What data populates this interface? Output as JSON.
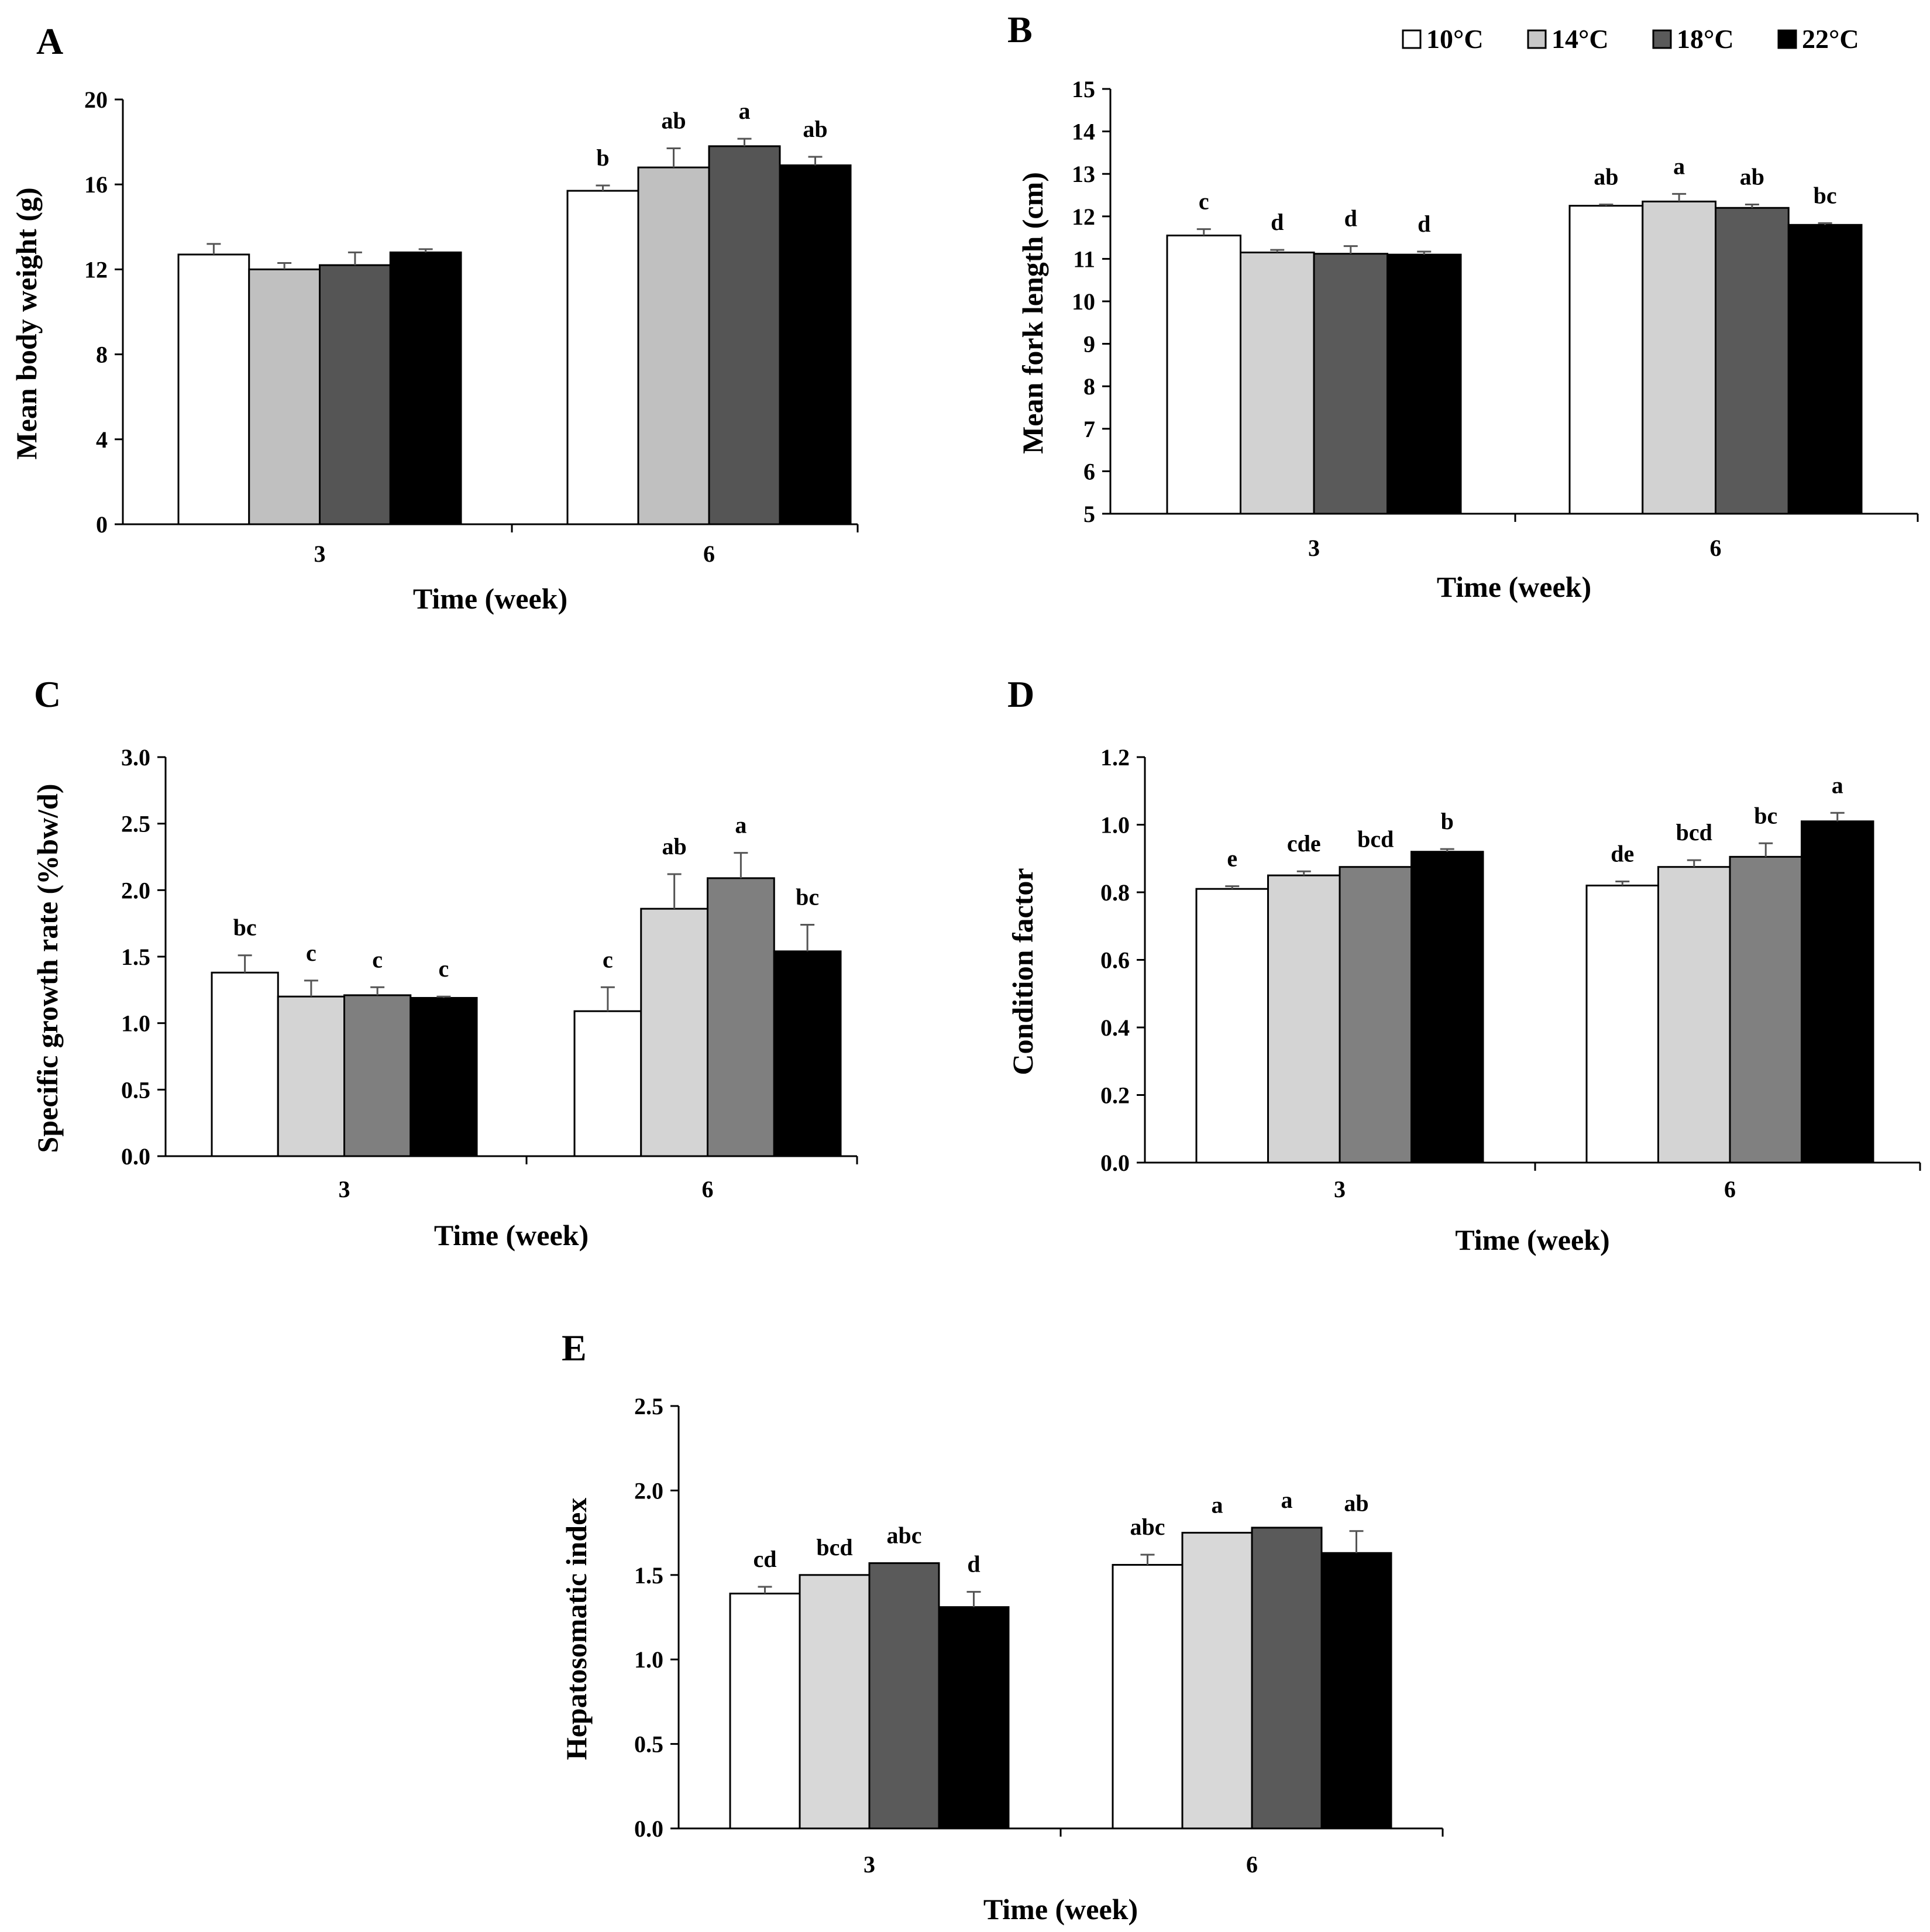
{
  "colors": {
    "10": "#ffffff",
    "14": "#c8c8c8",
    "18": "#5a5a5a",
    "22": "#000000"
  },
  "legend": [
    {
      "label": "10°C",
      "color": "#ffffff"
    },
    {
      "label": "14°C",
      "color": "#c8c8c8"
    },
    {
      "label": "18°C",
      "color": "#5a5a5a"
    },
    {
      "label": "22°C",
      "color": "#000000"
    }
  ],
  "chart_data": [
    {
      "panel": "A",
      "type": "bar",
      "categories": [
        "3",
        "6"
      ],
      "xlabel": "Time (week)",
      "ylabel": "Mean body weight (g)",
      "ylim": [
        0,
        20
      ],
      "yticks": [
        "0",
        "4",
        "8",
        "12",
        "16",
        "20"
      ],
      "colors": [
        "#ffffff",
        "#c0c0c0",
        "#555555",
        "#000000"
      ],
      "series": [
        {
          "name": "10°C",
          "values": [
            12.7,
            15.7
          ],
          "errors": [
            0.5,
            0.25
          ],
          "sig": [
            "",
            "b"
          ]
        },
        {
          "name": "14°C",
          "values": [
            12.0,
            16.8
          ],
          "errors": [
            0.3,
            0.9
          ],
          "sig": [
            "",
            "ab"
          ]
        },
        {
          "name": "18°C",
          "values": [
            12.2,
            17.8
          ],
          "errors": [
            0.6,
            0.35
          ],
          "sig": [
            "",
            "a"
          ]
        },
        {
          "name": "22°C",
          "values": [
            12.8,
            16.9
          ],
          "errors": [
            0.15,
            0.4
          ],
          "sig": [
            "",
            "ab"
          ]
        }
      ]
    },
    {
      "panel": "B",
      "type": "bar",
      "categories": [
        "3",
        "6"
      ],
      "xlabel": "Time (week)",
      "ylabel": "Mean fork length (cm)",
      "ylim": [
        5,
        15
      ],
      "yticks": [
        "5",
        "6",
        "7",
        "8",
        "9",
        "10",
        "11",
        "12",
        "13",
        "14",
        "15"
      ],
      "colors": [
        "#ffffff",
        "#d2d2d2",
        "#5a5a5a",
        "#000000"
      ],
      "series": [
        {
          "name": "10°C",
          "values": [
            11.55,
            12.25
          ],
          "errors": [
            0.15,
            0.03
          ],
          "sig": [
            "c",
            "ab"
          ]
        },
        {
          "name": "14°C",
          "values": [
            11.15,
            12.35
          ],
          "errors": [
            0.06,
            0.18
          ],
          "sig": [
            "d",
            "a"
          ]
        },
        {
          "name": "18°C",
          "values": [
            11.12,
            12.2
          ],
          "errors": [
            0.18,
            0.08
          ],
          "sig": [
            "d",
            "ab"
          ]
        },
        {
          "name": "22°C",
          "values": [
            11.1,
            11.8
          ],
          "errors": [
            0.07,
            0.04
          ],
          "sig": [
            "d",
            "bc"
          ]
        }
      ]
    },
    {
      "panel": "C",
      "type": "bar",
      "categories": [
        "3",
        "6"
      ],
      "xlabel": "Time (week)",
      "ylabel": "Specific growth rate (%bw/d)",
      "ylim": [
        0,
        3
      ],
      "yticks": [
        "0.0",
        "0.5",
        "1.0",
        "1.5",
        "2.0",
        "2.5",
        "3.0"
      ],
      "colors": [
        "#ffffff",
        "#d4d4d4",
        "#7f7f7f",
        "#000000"
      ],
      "series": [
        {
          "name": "10°C",
          "values": [
            1.38,
            1.09
          ],
          "errors": [
            0.13,
            0.18
          ],
          "sig": [
            "bc",
            "c"
          ]
        },
        {
          "name": "14°C",
          "values": [
            1.2,
            1.86
          ],
          "errors": [
            0.12,
            0.26
          ],
          "sig": [
            "c",
            "ab"
          ]
        },
        {
          "name": "18°C",
          "values": [
            1.21,
            2.09
          ],
          "errors": [
            0.06,
            0.19
          ],
          "sig": [
            "c",
            "a"
          ]
        },
        {
          "name": "22°C",
          "values": [
            1.19,
            1.54
          ],
          "errors": [
            0.01,
            0.2
          ],
          "sig": [
            "c",
            "bc"
          ]
        }
      ]
    },
    {
      "panel": "D",
      "type": "bar",
      "categories": [
        "3",
        "6"
      ],
      "xlabel": "Time (week)",
      "ylabel": "Condition factor",
      "ylim": [
        0,
        1.2
      ],
      "yticks": [
        "0.0",
        "0.2",
        "0.4",
        "0.6",
        "0.8",
        "1.0",
        "1.2"
      ],
      "colors": [
        "#ffffff",
        "#d4d4d4",
        "#808080",
        "#000000"
      ],
      "series": [
        {
          "name": "10°C",
          "values": [
            0.81,
            0.82
          ],
          "errors": [
            0.008,
            0.012
          ],
          "sig": [
            "e",
            "de"
          ]
        },
        {
          "name": "14°C",
          "values": [
            0.85,
            0.875
          ],
          "errors": [
            0.012,
            0.02
          ],
          "sig": [
            "cde",
            "bcd"
          ]
        },
        {
          "name": "18°C",
          "values": [
            0.875,
            0.905
          ],
          "errors": [
            0.0,
            0.04
          ],
          "sig": [
            "bcd",
            "bc"
          ]
        },
        {
          "name": "22°C",
          "values": [
            0.92,
            1.01
          ],
          "errors": [
            0.008,
            0.025
          ],
          "sig": [
            "b",
            "a"
          ]
        }
      ]
    },
    {
      "panel": "E",
      "type": "bar",
      "categories": [
        "3",
        "6"
      ],
      "xlabel": "Time (week)",
      "ylabel": "Hepatosomatic index",
      "ylim": [
        0,
        2.5
      ],
      "yticks": [
        "0.0",
        "0.5",
        "1.0",
        "1.5",
        "2.0",
        "2.5"
      ],
      "colors": [
        "#ffffff",
        "#d8d8d8",
        "#5a5a5a",
        "#000000"
      ],
      "series": [
        {
          "name": "10°C",
          "values": [
            1.39,
            1.56
          ],
          "errors": [
            0.04,
            0.06
          ],
          "sig": [
            "cd",
            "abc"
          ]
        },
        {
          "name": "14°C",
          "values": [
            1.5,
            1.75
          ],
          "errors": [
            0.0,
            0.0
          ],
          "sig": [
            "bcd",
            "a"
          ]
        },
        {
          "name": "18°C",
          "values": [
            1.57,
            1.78
          ],
          "errors": [
            0.0,
            0.0
          ],
          "sig": [
            "abc",
            "a"
          ]
        },
        {
          "name": "22°C",
          "values": [
            1.31,
            1.63
          ],
          "errors": [
            0.09,
            0.13
          ],
          "sig": [
            "d",
            "ab"
          ]
        }
      ]
    }
  ]
}
